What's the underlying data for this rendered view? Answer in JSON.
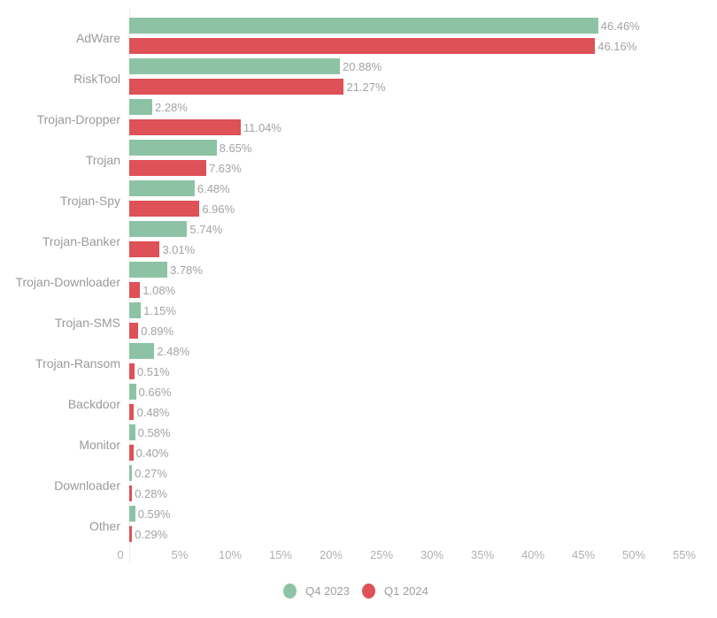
{
  "chart_data": {
    "type": "bar",
    "orientation": "horizontal",
    "title": "",
    "xlabel": "",
    "ylabel": "",
    "xlim": [
      0,
      55
    ],
    "x_ticks": [
      "0",
      "5%",
      "10%",
      "15%",
      "20%",
      "25%",
      "30%",
      "35%",
      "40%",
      "45%",
      "50%",
      "55%"
    ],
    "grid": false,
    "legend_position": "bottom",
    "categories": [
      "AdWare",
      "RiskTool",
      "Trojan-Dropper",
      "Trojan",
      "Trojan-Spy",
      "Trojan-Banker",
      "Trojan-Downloader",
      "Trojan-SMS",
      "Trojan-Ransom",
      "Backdoor",
      "Monitor",
      "Downloader",
      "Other"
    ],
    "series": [
      {
        "name": "Q4 2023",
        "color": "#8dc3a5",
        "values": [
          46.46,
          20.88,
          2.28,
          8.65,
          6.48,
          5.74,
          3.78,
          1.15,
          2.48,
          0.66,
          0.58,
          0.27,
          0.59
        ],
        "labels": [
          "46.46%",
          "20.88%",
          "2.28%",
          "8.65%",
          "6.48%",
          "5.74%",
          "3.78%",
          "1.15%",
          "2.48%",
          "0.66%",
          "0.58%",
          "0.27%",
          "0.59%"
        ]
      },
      {
        "name": "Q1 2024",
        "color": "#dd5157",
        "values": [
          46.16,
          21.27,
          11.04,
          7.63,
          6.96,
          3.01,
          1.08,
          0.89,
          0.51,
          0.48,
          0.4,
          0.28,
          0.29
        ],
        "labels": [
          "46.16%",
          "21.27%",
          "11.04%",
          "7.63%",
          "6.96%",
          "3.01%",
          "1.08%",
          "0.89%",
          "0.51%",
          "0.48%",
          "0.40%",
          "0.28%",
          "0.29%"
        ]
      }
    ]
  },
  "legend": {
    "items": [
      {
        "label": "Q4 2023",
        "color": "#8dc3a5"
      },
      {
        "label": "Q1 2024",
        "color": "#dd5157"
      }
    ]
  }
}
